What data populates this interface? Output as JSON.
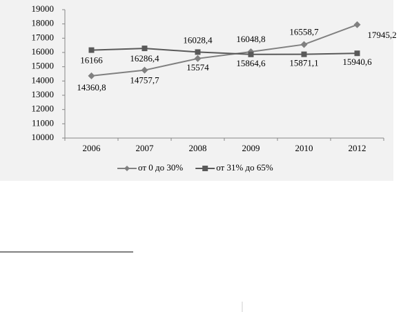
{
  "chart_data": {
    "type": "line",
    "categories": [
      "2006",
      "2007",
      "2008",
      "2009",
      "2010",
      "2012"
    ],
    "series": [
      {
        "name": "от 0 до 30%",
        "color": "#808080",
        "marker": "diamond",
        "values": [
          14360.8,
          14757.7,
          15574,
          16048.8,
          16558.7,
          17945.2
        ],
        "value_labels": [
          "14360,8",
          "14757,7",
          "15574",
          "16048,8",
          "16558,7",
          "17945,2"
        ]
      },
      {
        "name": "от 31% до 65%",
        "color": "#595959",
        "marker": "square",
        "values": [
          16166,
          16286.4,
          16028.4,
          15864.6,
          15871.1,
          15940.6
        ],
        "value_labels": [
          "16166",
          "16286,4",
          "16028,4",
          "15864,6",
          "15871,1",
          "15940,6"
        ]
      }
    ],
    "ylim": [
      10000,
      19000
    ],
    "yticks": [
      10000,
      11000,
      12000,
      13000,
      14000,
      15000,
      16000,
      17000,
      18000,
      19000
    ],
    "grid": false,
    "legend": "bottom"
  }
}
